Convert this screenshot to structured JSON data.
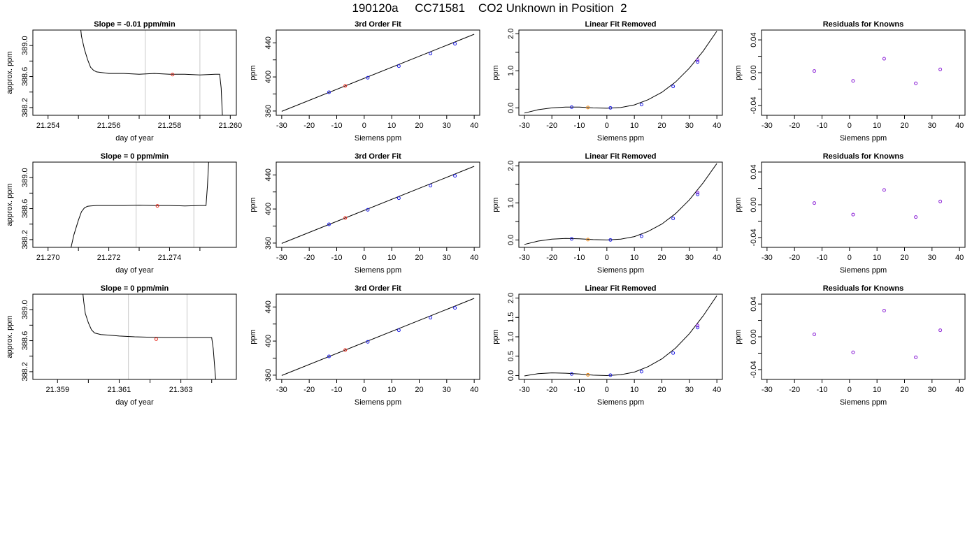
{
  "page": {
    "title": "190120a     CC71581    CO2 Unknown in Position  2"
  },
  "chart_data": [
    {
      "type": "line",
      "row": 0,
      "col": 0,
      "title": "Slope =  -0.01  ppm/min",
      "xlabel": "day of year",
      "ylabel": "approx. ppm",
      "xlim": [
        21.2535,
        21.2602
      ],
      "ylim": [
        388.1,
        389.2
      ],
      "xticks": [
        "21.254",
        "21.256",
        "21.258",
        "21.260"
      ],
      "xtick_values": [
        21.254,
        21.256,
        21.258,
        21.26
      ],
      "xminor_ticks": [
        21.255,
        21.257,
        21.259
      ],
      "yticks": [
        "388.2",
        "388.6",
        "389.0"
      ],
      "ytick_values": [
        388.2,
        388.6,
        389.0
      ],
      "yminor_ticks": [
        388.4,
        388.8
      ],
      "vlines": [
        21.2572,
        21.259
      ],
      "series": [
        {
          "x": [
            21.255,
            21.2551,
            21.2552,
            21.2553,
            21.2554,
            21.2555,
            21.2556,
            21.2558,
            21.256,
            21.2565,
            21.257,
            21.2575,
            21.258,
            21.2585,
            21.259,
            21.2595,
            21.25965,
            21.2597,
            21.25975
          ],
          "y": [
            389.5,
            389.12,
            388.95,
            388.82,
            388.72,
            388.68,
            388.66,
            388.65,
            388.64,
            388.64,
            388.63,
            388.64,
            388.63,
            388.63,
            388.62,
            388.63,
            388.63,
            388.45,
            388.0
          ]
        }
      ],
      "points": [
        {
          "x": 21.2581,
          "y": 388.625,
          "color": "#e8291c"
        }
      ]
    },
    {
      "type": "line",
      "row": 1,
      "col": 0,
      "title": "Slope =  0  ppm/min",
      "xlabel": "day of year",
      "ylabel": "approx. ppm",
      "xlim": [
        21.2695,
        21.2762
      ],
      "ylim": [
        388.1,
        389.2
      ],
      "xticks": [
        "21.270",
        "21.272",
        "21.274"
      ],
      "xtick_values": [
        21.27,
        21.272,
        21.274
      ],
      "xminor_ticks": [
        21.271,
        21.273,
        21.275
      ],
      "yticks": [
        "388.2",
        "388.6",
        "389.0"
      ],
      "ytick_values": [
        388.2,
        388.6,
        389.0
      ],
      "yminor_ticks": [
        388.4,
        388.8
      ],
      "vlines": [
        21.2729,
        21.2748
      ],
      "series": [
        {
          "x": [
            21.2707,
            21.27085,
            21.271,
            21.2711,
            21.2712,
            21.2713,
            21.2714,
            21.2716,
            21.272,
            21.2725,
            21.273,
            21.2735,
            21.274,
            21.2745,
            21.275,
            21.2752,
            21.27525,
            21.2753
          ],
          "y": [
            388.0,
            388.26,
            388.45,
            388.56,
            388.61,
            388.63,
            388.635,
            388.64,
            388.64,
            388.64,
            388.645,
            388.64,
            388.64,
            388.635,
            388.64,
            388.64,
            388.9,
            389.3
          ]
        }
      ],
      "points": [
        {
          "x": 21.2736,
          "y": 388.635,
          "color": "#e8291c"
        }
      ]
    },
    {
      "type": "line",
      "row": 2,
      "col": 0,
      "title": "Slope =  0  ppm/min",
      "xlabel": "day of year",
      "ylabel": "approx. ppm",
      "xlim": [
        21.3582,
        21.3648
      ],
      "ylim": [
        388.1,
        389.2
      ],
      "xticks": [
        "21.359",
        "21.361",
        "21.363"
      ],
      "xtick_values": [
        21.359,
        21.361,
        21.363
      ],
      "xminor_ticks": [
        21.36,
        21.362,
        21.364
      ],
      "yticks": [
        "388.2",
        "388.6",
        "389.0"
      ],
      "ytick_values": [
        388.2,
        388.6,
        389.0
      ],
      "yminor_ticks": [
        388.4,
        388.8
      ],
      "vlines": [
        21.3613,
        21.3632
      ],
      "series": [
        {
          "x": [
            21.3598,
            21.35985,
            21.3599,
            21.36,
            21.3601,
            21.3602,
            21.3604,
            21.3607,
            21.361,
            21.3615,
            21.362,
            21.3625,
            21.363,
            21.3635,
            21.364,
            21.36405,
            21.3641,
            21.36415
          ],
          "y": [
            389.3,
            389.1,
            388.95,
            388.83,
            388.74,
            388.7,
            388.68,
            388.67,
            388.66,
            388.65,
            388.645,
            388.64,
            388.64,
            388.64,
            388.64,
            388.5,
            388.25,
            388.0
          ]
        }
      ],
      "points": [
        {
          "x": 21.3622,
          "y": 388.62,
          "color": "#e8291c"
        }
      ]
    },
    {
      "type": "scatter",
      "row": 0,
      "col": 1,
      "title": "3rd Order Fit",
      "xlabel": "Siemens ppm",
      "ylabel": "ppm",
      "xlim": [
        -32,
        42
      ],
      "ylim": [
        355,
        455
      ],
      "xtick_values": [
        -30,
        -20,
        -10,
        0,
        10,
        20,
        30,
        40
      ],
      "xticks": [
        "-30",
        "-20",
        "-10",
        "0",
        "10",
        "20",
        "30",
        "40"
      ],
      "ytick_values": [
        360,
        400,
        440
      ],
      "yticks": [
        "360",
        "400",
        "440"
      ],
      "yminor_ticks": [
        380,
        420
      ],
      "line": {
        "x": [
          -30,
          40
        ],
        "y": [
          359.6,
          450.1
        ]
      },
      "points": [
        {
          "x": -12.8,
          "y": 382.0,
          "color": "#1f1fe6"
        },
        {
          "x": -6.9,
          "y": 389.5,
          "color": "#e8291c"
        },
        {
          "x": 1.3,
          "y": 399.1,
          "color": "#1f1fe6"
        },
        {
          "x": 12.6,
          "y": 412.7,
          "color": "#1f1fe6"
        },
        {
          "x": 24.1,
          "y": 427.4,
          "color": "#1f1fe6"
        },
        {
          "x": 33.0,
          "y": 438.9,
          "color": "#1f1fe6"
        }
      ]
    },
    {
      "type": "scatter",
      "row": 1,
      "col": 1,
      "title": "3rd Order Fit",
      "xlabel": "Siemens ppm",
      "ylabel": "ppm",
      "xlim": [
        -32,
        42
      ],
      "ylim": [
        355,
        455
      ],
      "xtick_values": [
        -30,
        -20,
        -10,
        0,
        10,
        20,
        30,
        40
      ],
      "xticks": [
        "-30",
        "-20",
        "-10",
        "0",
        "10",
        "20",
        "30",
        "40"
      ],
      "ytick_values": [
        360,
        400,
        440
      ],
      "yticks": [
        "360",
        "400",
        "440"
      ],
      "yminor_ticks": [
        380,
        420
      ],
      "line": {
        "x": [
          -30,
          40
        ],
        "y": [
          359.6,
          450.1
        ]
      },
      "points": [
        {
          "x": -12.8,
          "y": 382.0,
          "color": "#1f1fe6"
        },
        {
          "x": -6.9,
          "y": 389.5,
          "color": "#e8291c"
        },
        {
          "x": 1.3,
          "y": 399.1,
          "color": "#1f1fe6"
        },
        {
          "x": 12.6,
          "y": 412.7,
          "color": "#1f1fe6"
        },
        {
          "x": 24.1,
          "y": 427.4,
          "color": "#1f1fe6"
        },
        {
          "x": 33.0,
          "y": 438.9,
          "color": "#1f1fe6"
        }
      ]
    },
    {
      "type": "scatter",
      "row": 2,
      "col": 1,
      "title": "3rd Order Fit",
      "xlabel": "Siemens ppm",
      "ylabel": "ppm",
      "xlim": [
        -32,
        42
      ],
      "ylim": [
        355,
        455
      ],
      "xtick_values": [
        -30,
        -20,
        -10,
        0,
        10,
        20,
        30,
        40
      ],
      "xticks": [
        "-30",
        "-20",
        "-10",
        "0",
        "10",
        "20",
        "30",
        "40"
      ],
      "ytick_values": [
        360,
        400,
        440
      ],
      "yticks": [
        "360",
        "400",
        "440"
      ],
      "yminor_ticks": [
        380,
        420
      ],
      "line": {
        "x": [
          -30,
          40
        ],
        "y": [
          359.6,
          450.1
        ]
      },
      "points": [
        {
          "x": -12.8,
          "y": 382.0,
          "color": "#1f1fe6"
        },
        {
          "x": -6.9,
          "y": 389.5,
          "color": "#e8291c"
        },
        {
          "x": 1.3,
          "y": 399.1,
          "color": "#1f1fe6"
        },
        {
          "x": 12.6,
          "y": 412.7,
          "color": "#1f1fe6"
        },
        {
          "x": 24.1,
          "y": 427.4,
          "color": "#1f1fe6"
        },
        {
          "x": 33.0,
          "y": 438.9,
          "color": "#1f1fe6"
        }
      ]
    },
    {
      "type": "scatter",
      "row": 0,
      "col": 2,
      "title": "Linear Fit Removed",
      "xlabel": "Siemens ppm",
      "ylabel": "ppm",
      "xlim": [
        -32,
        42
      ],
      "ylim": [
        -0.2,
        2.1
      ],
      "xtick_values": [
        -30,
        -20,
        -10,
        0,
        10,
        20,
        30,
        40
      ],
      "xticks": [
        "-30",
        "-20",
        "-10",
        "0",
        "10",
        "20",
        "30",
        "40"
      ],
      "ytick_values": [
        0.0,
        1.0,
        2.0
      ],
      "yticks": [
        "0.0",
        "1.0",
        "2.0"
      ],
      "yminor_ticks": [
        0.5,
        1.5
      ],
      "curve": {
        "x": [
          -30,
          -25,
          -20,
          -15,
          -10,
          -5,
          0,
          5,
          10,
          15,
          20,
          25,
          30,
          35,
          40
        ],
        "y": [
          -0.14,
          -0.05,
          0.0,
          0.02,
          0.02,
          0.0,
          -0.01,
          0.01,
          0.08,
          0.22,
          0.42,
          0.7,
          1.07,
          1.53,
          2.07
        ]
      },
      "points": [
        {
          "x": -12.8,
          "y": 0.02,
          "color": "#1f1fe6"
        },
        {
          "x": -6.9,
          "y": 0.01,
          "color": "#e8820c"
        },
        {
          "x": 1.3,
          "y": 0.0,
          "color": "#1f1fe6"
        },
        {
          "x": 12.6,
          "y": 0.09,
          "color": "#1f1fe6"
        },
        {
          "x": 24.1,
          "y": 0.58,
          "color": "#1f1fe6"
        },
        {
          "x": 33.0,
          "y": 1.24,
          "color": "#1f1fe6"
        },
        {
          "x": 33.0,
          "y": 1.29,
          "color": "#8a1fd6"
        }
      ]
    },
    {
      "type": "scatter",
      "row": 1,
      "col": 2,
      "title": "Linear Fit Removed",
      "xlabel": "Siemens ppm",
      "ylabel": "ppm",
      "xlim": [
        -32,
        42
      ],
      "ylim": [
        -0.2,
        2.1
      ],
      "xtick_values": [
        -30,
        -20,
        -10,
        0,
        10,
        20,
        30,
        40
      ],
      "xticks": [
        "-30",
        "-20",
        "-10",
        "0",
        "10",
        "20",
        "30",
        "40"
      ],
      "ytick_values": [
        0.0,
        1.0,
        2.0
      ],
      "yticks": [
        "0.0",
        "1.0",
        "2.0"
      ],
      "yminor_ticks": [
        0.5,
        1.5
      ],
      "curve": {
        "x": [
          -30,
          -25,
          -20,
          -15,
          -10,
          -5,
          0,
          5,
          10,
          15,
          20,
          25,
          30,
          35,
          40
        ],
        "y": [
          -0.12,
          -0.03,
          0.02,
          0.04,
          0.03,
          0.01,
          0.0,
          0.02,
          0.09,
          0.23,
          0.43,
          0.71,
          1.08,
          1.54,
          2.06
        ]
      },
      "points": [
        {
          "x": -12.8,
          "y": 0.03,
          "color": "#1f1fe6"
        },
        {
          "x": -6.9,
          "y": 0.01,
          "color": "#e8820c"
        },
        {
          "x": 1.3,
          "y": 0.0,
          "color": "#1f1fe6"
        },
        {
          "x": 12.6,
          "y": 0.1,
          "color": "#1f1fe6"
        },
        {
          "x": 24.1,
          "y": 0.58,
          "color": "#1f1fe6"
        },
        {
          "x": 33.0,
          "y": 1.23,
          "color": "#1f1fe6"
        },
        {
          "x": 33.0,
          "y": 1.28,
          "color": "#8a1fd6"
        }
      ]
    },
    {
      "type": "scatter",
      "row": 2,
      "col": 2,
      "title": "Linear Fit Removed",
      "xlabel": "Siemens ppm",
      "ylabel": "ppm",
      "xlim": [
        -32,
        42
      ],
      "ylim": [
        -0.1,
        2.1
      ],
      "xtick_values": [
        -30,
        -20,
        -10,
        0,
        10,
        20,
        30,
        40
      ],
      "xticks": [
        "-30",
        "-20",
        "-10",
        "0",
        "10",
        "20",
        "30",
        "40"
      ],
      "ytick_values": [
        0.0,
        0.5,
        1.0,
        1.5,
        2.0
      ],
      "yticks": [
        "0.0",
        "0.5",
        "1.0",
        "1.5",
        "2.0"
      ],
      "yminor_ticks": [],
      "curve": {
        "x": [
          -30,
          -25,
          -20,
          -15,
          -10,
          -5,
          0,
          5,
          10,
          15,
          20,
          25,
          30,
          35,
          40
        ],
        "y": [
          -0.01,
          0.05,
          0.07,
          0.06,
          0.04,
          0.01,
          0.0,
          0.02,
          0.09,
          0.23,
          0.43,
          0.71,
          1.08,
          1.54,
          2.06
        ]
      },
      "points": [
        {
          "x": -12.8,
          "y": 0.04,
          "color": "#1f1fe6"
        },
        {
          "x": -6.9,
          "y": 0.02,
          "color": "#e8820c"
        },
        {
          "x": 1.3,
          "y": 0.01,
          "color": "#1f1fe6"
        },
        {
          "x": 12.6,
          "y": 0.1,
          "color": "#1f1fe6"
        },
        {
          "x": 24.1,
          "y": 0.58,
          "color": "#1f1fe6"
        },
        {
          "x": 33.0,
          "y": 1.24,
          "color": "#1f1fe6"
        },
        {
          "x": 33.0,
          "y": 1.29,
          "color": "#8a1fd6"
        }
      ]
    },
    {
      "type": "scatter",
      "row": 0,
      "col": 3,
      "title": "Residuals for Knowns",
      "xlabel": "Siemens ppm",
      "ylabel": "ppm",
      "xlim": [
        -32,
        42
      ],
      "ylim": [
        -0.052,
        0.052
      ],
      "xtick_values": [
        -30,
        -20,
        -10,
        0,
        10,
        20,
        30,
        40
      ],
      "xticks": [
        "-30",
        "-20",
        "-10",
        "0",
        "10",
        "20",
        "30",
        "40"
      ],
      "ytick_values": [
        -0.04,
        0.0,
        0.04
      ],
      "yticks": [
        "-0.04",
        "0.00",
        "0.04"
      ],
      "yminor_ticks": [
        -0.02,
        0.02
      ],
      "points": [
        {
          "x": -12.8,
          "y": 0.002,
          "color": "#8a1fd6"
        },
        {
          "x": 1.3,
          "y": -0.01,
          "color": "#8a1fd6"
        },
        {
          "x": 12.6,
          "y": 0.017,
          "color": "#8a1fd6"
        },
        {
          "x": 24.1,
          "y": -0.013,
          "color": "#8a1fd6"
        },
        {
          "x": 33.0,
          "y": 0.004,
          "color": "#8a1fd6"
        }
      ]
    },
    {
      "type": "scatter",
      "row": 1,
      "col": 3,
      "title": "Residuals for Knowns",
      "xlabel": "Siemens ppm",
      "ylabel": "ppm",
      "xlim": [
        -32,
        42
      ],
      "ylim": [
        -0.052,
        0.052
      ],
      "xtick_values": [
        -30,
        -20,
        -10,
        0,
        10,
        20,
        30,
        40
      ],
      "xticks": [
        "-30",
        "-20",
        "-10",
        "0",
        "10",
        "20",
        "30",
        "40"
      ],
      "ytick_values": [
        -0.04,
        0.0,
        0.04
      ],
      "yticks": [
        "-0.04",
        "0.00",
        "0.04"
      ],
      "yminor_ticks": [
        -0.02,
        0.02
      ],
      "points": [
        {
          "x": -12.8,
          "y": 0.002,
          "color": "#8a1fd6"
        },
        {
          "x": 1.3,
          "y": -0.012,
          "color": "#8a1fd6"
        },
        {
          "x": 12.6,
          "y": 0.018,
          "color": "#8a1fd6"
        },
        {
          "x": 24.1,
          "y": -0.015,
          "color": "#8a1fd6"
        },
        {
          "x": 33.0,
          "y": 0.004,
          "color": "#8a1fd6"
        }
      ]
    },
    {
      "type": "scatter",
      "row": 2,
      "col": 3,
      "title": "Residuals for Knowns",
      "xlabel": "Siemens ppm",
      "ylabel": "ppm",
      "xlim": [
        -32,
        42
      ],
      "ylim": [
        -0.052,
        0.052
      ],
      "xtick_values": [
        -30,
        -20,
        -10,
        0,
        10,
        20,
        30,
        40
      ],
      "xticks": [
        "-30",
        "-20",
        "-10",
        "0",
        "10",
        "20",
        "30",
        "40"
      ],
      "ytick_values": [
        -0.04,
        0.0,
        0.04
      ],
      "yticks": [
        "-0.04",
        "0.00",
        "0.04"
      ],
      "yminor_ticks": [
        -0.02,
        0.02
      ],
      "points": [
        {
          "x": -12.8,
          "y": 0.003,
          "color": "#8a1fd6"
        },
        {
          "x": 1.3,
          "y": -0.019,
          "color": "#8a1fd6"
        },
        {
          "x": 12.6,
          "y": 0.032,
          "color": "#8a1fd6"
        },
        {
          "x": 24.1,
          "y": -0.025,
          "color": "#8a1fd6"
        },
        {
          "x": 33.0,
          "y": 0.008,
          "color": "#8a1fd6"
        }
      ]
    }
  ]
}
